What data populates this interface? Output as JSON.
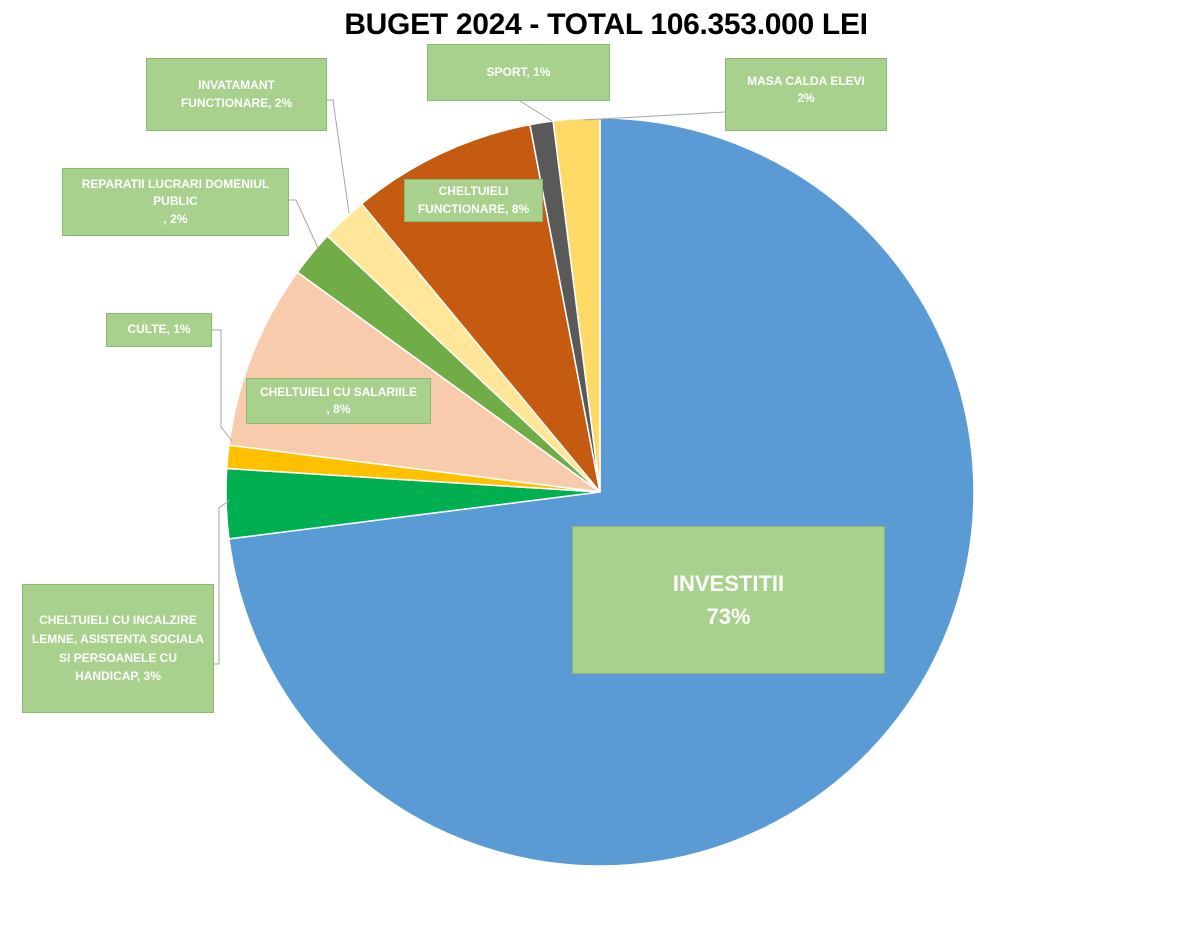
{
  "chart_data": {
    "type": "pie",
    "title": "BUGET 2024 - TOTAL 106.353.000 LEI",
    "slices": [
      {
        "key": "investitii",
        "label": "INVESTITII\n73%",
        "value": 73,
        "color": "#5b9bd5"
      },
      {
        "key": "incalzire",
        "label": "CHELTUIELI CU INCALZIRE LEMNE, ASISTENTA SOCIALA SI PERSOANELE CU HANDICAP, 3%",
        "value": 3,
        "color": "#00b050"
      },
      {
        "key": "culte",
        "label": "CULTE, 1%",
        "value": 1,
        "color": "#ffc000"
      },
      {
        "key": "salarii",
        "label": "CHELTUIELI CU SALARIILE\n, 8%",
        "value": 8,
        "color": "#f8cbad"
      },
      {
        "key": "reparatii",
        "label": "REPARATII LUCRARI DOMENIUL PUBLIC\n, 2%",
        "value": 2,
        "color": "#70ad47"
      },
      {
        "key": "invatamant",
        "label": "INVATAMANT FUNCTIONARE, 2%",
        "value": 2,
        "color": "#ffe699"
      },
      {
        "key": "functionare",
        "label": "CHELTUIELI FUNCTIONARE, 8%",
        "value": 8,
        "color": "#c55a11"
      },
      {
        "key": "sport",
        "label": "SPORT, 1%",
        "value": 1,
        "color": "#595959"
      },
      {
        "key": "masa",
        "label": "MASA CALDA ELEVI\n2%",
        "value": 2,
        "color": "#ffd966"
      }
    ],
    "label_background": "#a9d18e",
    "label_text_color": "#ffffff",
    "leader_line_color": "#a6a6a6"
  }
}
